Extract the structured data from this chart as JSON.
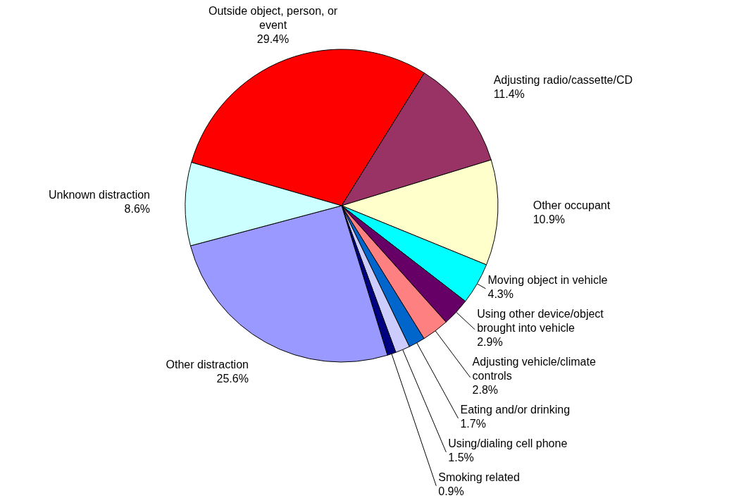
{
  "chart_data": {
    "type": "pie",
    "categories": [
      "Outside object, person, or event",
      "Adjusting radio/cassette/CD",
      "Other occupant",
      "Moving object in vehicle",
      "Using other device/object brought into vehicle",
      "Adjusting vehicle/climate controls",
      "Eating and/or drinking",
      "Using/dialing cell phone",
      "Smoking related",
      "Other distraction",
      "Unknown distraction"
    ],
    "values": [
      29.4,
      11.4,
      10.9,
      4.3,
      2.9,
      2.8,
      1.7,
      1.5,
      0.9,
      25.6,
      8.6
    ],
    "value_labels": [
      "29.4%",
      "11.4%",
      "10.9%",
      "4.3%",
      "2.9%",
      "2.8%",
      "1.7%",
      "1.5%",
      "0.9%",
      "25.6%",
      "8.6%"
    ],
    "colors": [
      "#ff0000",
      "#993366",
      "#ffffcc",
      "#00ffff",
      "#660066",
      "#ff8080",
      "#0066cc",
      "#ccccff",
      "#000080",
      "#9999ff",
      "#ccffff"
    ]
  }
}
